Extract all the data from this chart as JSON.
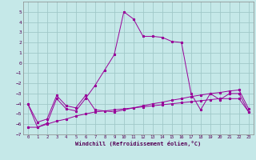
{
  "xlabel": "Windchill (Refroidissement éolien,°C)",
  "background_color": "#c5e8e8",
  "grid_color": "#a0c8c8",
  "line_color": "#990099",
  "xlim": [
    -0.5,
    23.5
  ],
  "ylim": [
    -7,
    6
  ],
  "xticks": [
    0,
    1,
    2,
    3,
    4,
    5,
    6,
    7,
    8,
    9,
    10,
    11,
    12,
    13,
    14,
    15,
    16,
    17,
    18,
    19,
    20,
    21,
    22,
    23
  ],
  "yticks": [
    -7,
    -6,
    -5,
    -4,
    -3,
    -2,
    -1,
    0,
    1,
    2,
    3,
    4,
    5
  ],
  "line1_x": [
    0,
    1,
    2,
    3,
    4,
    5,
    6,
    7,
    8,
    9,
    10,
    11,
    12,
    13,
    14,
    15,
    16,
    17,
    18,
    19,
    20,
    21,
    22,
    23
  ],
  "line1_y": [
    -6.3,
    -6.3,
    -6.0,
    -5.7,
    -5.5,
    -5.2,
    -5.0,
    -4.8,
    -4.7,
    -4.6,
    -4.5,
    -4.4,
    -4.3,
    -4.2,
    -4.1,
    -4.0,
    -3.9,
    -3.8,
    -3.7,
    -3.6,
    -3.5,
    -3.5,
    -3.5,
    -4.8
  ],
  "line2_x": [
    0,
    1,
    2,
    3,
    4,
    5,
    6,
    7,
    8,
    9,
    10,
    11,
    12,
    13,
    14,
    15,
    16,
    17,
    18,
    19,
    20,
    21,
    22,
    23
  ],
  "line2_y": [
    -4.0,
    -6.3,
    -5.9,
    -3.5,
    -4.5,
    -4.7,
    -3.5,
    -2.2,
    -0.7,
    0.8,
    5.0,
    4.3,
    2.6,
    2.6,
    2.5,
    2.1,
    2.0,
    -3.0,
    -4.6,
    -3.0,
    -3.6,
    -3.0,
    -3.0,
    -4.8
  ],
  "line3_x": [
    0,
    1,
    2,
    3,
    4,
    5,
    6,
    7,
    8,
    9,
    10,
    11,
    12,
    13,
    14,
    15,
    16,
    17,
    18,
    19,
    20,
    21,
    22,
    23
  ],
  "line3_y": [
    -4.0,
    -5.8,
    -5.5,
    -3.2,
    -4.2,
    -4.4,
    -3.2,
    -4.6,
    -4.7,
    -4.8,
    -4.6,
    -4.4,
    -4.2,
    -4.0,
    -3.85,
    -3.65,
    -3.5,
    -3.3,
    -3.15,
    -3.0,
    -2.9,
    -2.75,
    -2.65,
    -4.5
  ]
}
